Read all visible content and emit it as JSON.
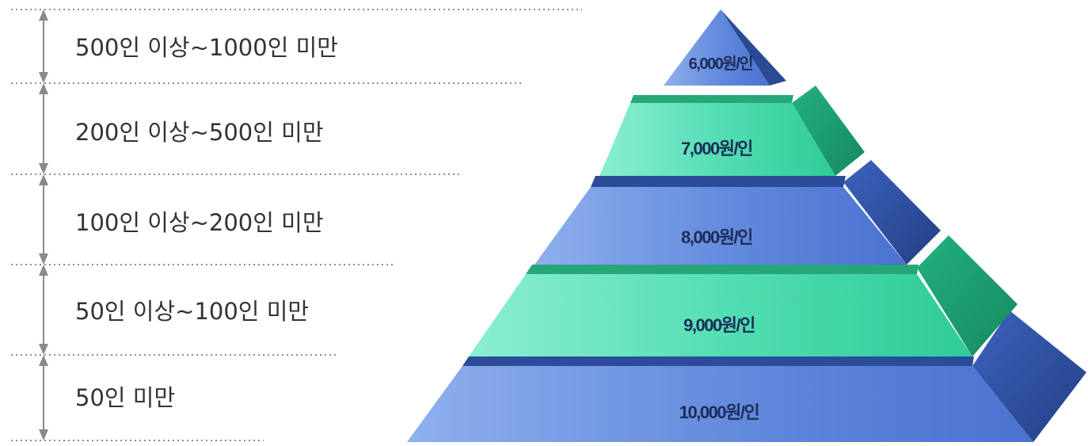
{
  "ranges": [
    "500인 이상~1000인 미만",
    "200인 이상~500인 미만",
    "100인 이상~200인 미만",
    "50인 이상~100인 미만",
    "50인 미만"
  ],
  "tiers": [
    {
      "price": "6,000원/인",
      "color": "blue"
    },
    {
      "price": "7,000원/인",
      "color": "green"
    },
    {
      "price": "8,000원/인",
      "color": "blue"
    },
    {
      "price": "9,000원/인",
      "color": "green"
    },
    {
      "price": "10,000원/인",
      "color": "blue"
    }
  ],
  "colors": {
    "blue_front": "#5f86db",
    "blue_side": "#2f4f99",
    "blue_top": "#3b5fb8",
    "green_front": "#4fdcb0",
    "green_side": "#1e9f72",
    "green_top": "#2bb987",
    "label_text": "#1d2d57",
    "range_text": "#333333",
    "guide_lines": "#8c8c8c"
  }
}
